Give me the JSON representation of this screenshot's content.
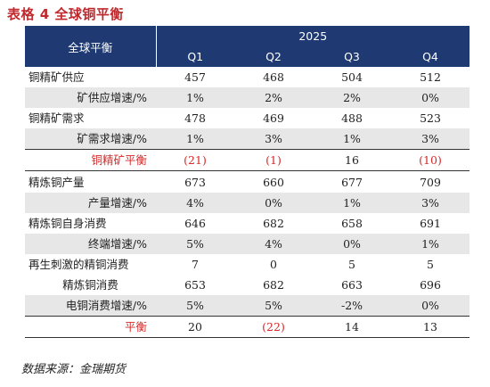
{
  "title": "表格 4 全球铜平衡",
  "header": {
    "label": "全球平衡",
    "year": "2025",
    "quarters": [
      "Q1",
      "Q2",
      "Q3",
      "Q4"
    ]
  },
  "rows": [
    {
      "label": "铜精矿供应",
      "values": [
        "457",
        "468",
        "504",
        "512"
      ]
    },
    {
      "label": "矿供应增速/%",
      "values": [
        "1%",
        "2%",
        "2%",
        "0%"
      ]
    },
    {
      "label": "铜精矿需求",
      "values": [
        "478",
        "469",
        "488",
        "523"
      ]
    },
    {
      "label": "矿需求增速/%",
      "values": [
        "1%",
        "3%",
        "1%",
        "3%"
      ]
    },
    {
      "label": "铜精矿平衡",
      "values": [
        "(21)",
        "(1)",
        "16",
        "(10)"
      ]
    },
    {
      "label": "精炼铜产量",
      "values": [
        "673",
        "660",
        "677",
        "709"
      ]
    },
    {
      "label": "产量增速/%",
      "values": [
        "4%",
        "0%",
        "1%",
        "3%"
      ]
    },
    {
      "label": "精炼铜自身消费",
      "values": [
        "646",
        "682",
        "658",
        "691"
      ]
    },
    {
      "label": "终端增速/%",
      "values": [
        "5%",
        "4%",
        "0%",
        "1%"
      ]
    },
    {
      "label": "再生刺激的精铜消费",
      "values": [
        "7",
        "0",
        "5",
        "5"
      ]
    },
    {
      "label": "精炼铜消费",
      "values": [
        "653",
        "682",
        "663",
        "696"
      ]
    },
    {
      "label": "电铜消费增速/%",
      "values": [
        "5%",
        "5%",
        "-2%",
        "0%"
      ]
    },
    {
      "label": "平衡",
      "values": [
        "20",
        "(22)",
        "14",
        "13"
      ]
    }
  ],
  "source": "数据来源：金瑞期货",
  "colors": {
    "title": "#c0282d",
    "header_bg": "#1f3a73",
    "negative": "#d62a2a",
    "shade": "#e7e7e7"
  }
}
